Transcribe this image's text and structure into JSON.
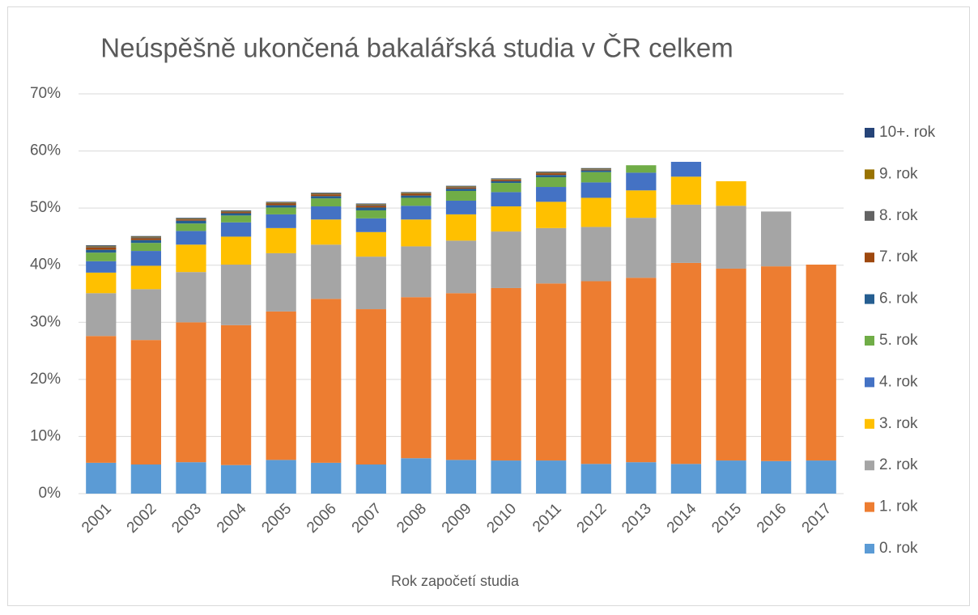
{
  "chart_data": {
    "type": "stacked_bar",
    "title": "Neúspěšně ukončená bakalářská studia v ČR celkem",
    "x_label": "Rok započetí studia",
    "categories": [
      "2001",
      "2002",
      "2003",
      "2004",
      "2005",
      "2006",
      "2007",
      "2008",
      "2009",
      "2010",
      "2011",
      "2012",
      "2013",
      "2014",
      "2015",
      "2016",
      "2017"
    ],
    "ylim": [
      0,
      70
    ],
    "yticks": [
      {
        "value": 0,
        "label": "0%"
      },
      {
        "value": 10,
        "label": "10%"
      },
      {
        "value": 20,
        "label": "20%"
      },
      {
        "value": 30,
        "label": "30%"
      },
      {
        "value": 40,
        "label": "40%"
      },
      {
        "value": 50,
        "label": "50%"
      },
      {
        "value": 60,
        "label": "60%"
      },
      {
        "value": 70,
        "label": "70%"
      }
    ],
    "grid": true,
    "legend": "right",
    "series": [
      {
        "name": "0. rok",
        "color": "#5b9bd5",
        "values": [
          5.4,
          5.1,
          5.5,
          5.0,
          5.9,
          5.4,
          5.1,
          6.2,
          5.9,
          5.8,
          5.8,
          5.2,
          5.5,
          5.2,
          5.8,
          5.7,
          5.8
        ]
      },
      {
        "name": "1. rok",
        "color": "#ed7d31",
        "values": [
          22.2,
          21.8,
          24.5,
          24.5,
          26.0,
          28.7,
          27.2,
          28.2,
          29.2,
          30.2,
          31.0,
          32.0,
          32.3,
          35.2,
          33.6,
          34.1,
          34.3
        ]
      },
      {
        "name": "2. rok",
        "color": "#a5a5a5",
        "values": [
          7.5,
          8.9,
          8.8,
          10.6,
          10.2,
          9.5,
          9.2,
          8.9,
          9.2,
          9.9,
          9.7,
          9.5,
          10.5,
          10.2,
          11.0,
          9.6,
          null
        ]
      },
      {
        "name": "3. rok",
        "color": "#ffc000",
        "values": [
          3.6,
          4.1,
          4.8,
          4.9,
          4.4,
          4.4,
          4.3,
          4.7,
          4.6,
          4.4,
          4.6,
          5.1,
          4.8,
          4.9,
          4.3,
          null,
          null
        ]
      },
      {
        "name": "4. rok",
        "color": "#4472c4",
        "values": [
          2.0,
          2.6,
          2.4,
          2.5,
          2.4,
          2.3,
          2.4,
          2.4,
          2.4,
          2.5,
          2.6,
          2.7,
          3.1,
          2.6,
          null,
          null,
          null
        ]
      },
      {
        "name": "5. rok",
        "color": "#70ad47",
        "values": [
          1.5,
          1.4,
          1.3,
          1.2,
          1.2,
          1.4,
          1.4,
          1.4,
          1.7,
          1.6,
          1.7,
          1.8,
          1.3,
          null,
          null,
          null,
          null
        ]
      },
      {
        "name": "6. rok",
        "color": "#255e91",
        "values": [
          0.5,
          0.5,
          0.5,
          0.4,
          0.4,
          0.4,
          0.5,
          0.4,
          0.4,
          0.3,
          0.4,
          0.3,
          null,
          null,
          null,
          null,
          null
        ]
      },
      {
        "name": "7. rok",
        "color": "#9e480e",
        "values": [
          0.4,
          0.3,
          0.2,
          0.2,
          0.3,
          0.3,
          0.3,
          0.3,
          0.2,
          0.2,
          0.3,
          0.1,
          null,
          null,
          null,
          null,
          null
        ]
      },
      {
        "name": "8. rok",
        "color": "#636363",
        "values": [
          0.2,
          0.2,
          0.1,
          0.1,
          0.1,
          0.1,
          0.2,
          0.1,
          0.1,
          0.1,
          0.1,
          0.1,
          null,
          null,
          null,
          null,
          null
        ]
      },
      {
        "name": "9. rok",
        "color": "#997300",
        "values": [
          0.1,
          0.1,
          0.1,
          0.1,
          0.1,
          0.1,
          0.1,
          0.1,
          0.1,
          0.1,
          0.1,
          0.1,
          null,
          null,
          null,
          null,
          null
        ]
      },
      {
        "name": "10+. rok",
        "color": "#264478",
        "values": [
          0.1,
          0.1,
          0.1,
          0.1,
          0.1,
          0.1,
          0.1,
          0.1,
          0.1,
          0.1,
          0.1,
          0.1,
          null,
          null,
          null,
          null,
          null
        ]
      }
    ]
  }
}
